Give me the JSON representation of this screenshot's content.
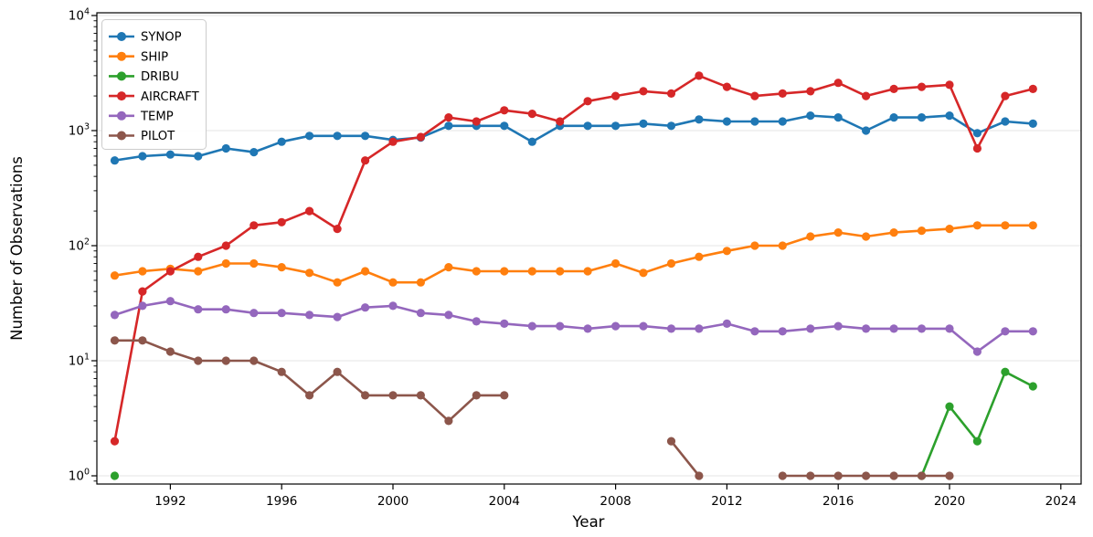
{
  "chart_data": {
    "type": "line",
    "title": "",
    "xlabel": "Year",
    "ylabel": "Number of Observations",
    "yscale": "log",
    "grid": "horizontal-major",
    "legend_position": "upper-left",
    "background_color": "#ffffff",
    "grid_color": "#e6e6e6",
    "spine_color": "#000000",
    "ylim": [
      0.85,
      10500
    ],
    "xlim": [
      1989.4,
      2024.7
    ],
    "x": [
      1990,
      1991,
      1992,
      1993,
      1994,
      1995,
      1996,
      1997,
      1998,
      1999,
      2000,
      2001,
      2002,
      2003,
      2004,
      2005,
      2006,
      2007,
      2008,
      2009,
      2010,
      2011,
      2012,
      2013,
      2014,
      2015,
      2016,
      2017,
      2018,
      2019,
      2020,
      2021,
      2022,
      2023
    ],
    "xticks": [
      1992,
      1996,
      2000,
      2004,
      2008,
      2012,
      2016,
      2020,
      2024
    ],
    "yticks": [
      1,
      10,
      100,
      1000,
      10000
    ],
    "ytick_exponents": [
      0,
      1,
      2,
      3,
      4
    ],
    "series": [
      {
        "name": "SYNOP",
        "color": "#1f77b4",
        "values": [
          550,
          600,
          620,
          600,
          700,
          650,
          800,
          900,
          900,
          900,
          830,
          870,
          1100,
          1100,
          1100,
          800,
          1100,
          1100,
          1100,
          1150,
          1100,
          1250,
          1200,
          1200,
          1200,
          1350,
          1300,
          1000,
          1300,
          1300,
          1350,
          950,
          1200,
          1150
        ]
      },
      {
        "name": "SHIP",
        "color": "#ff7f0e",
        "values": [
          55,
          60,
          63,
          60,
          70,
          70,
          65,
          58,
          48,
          60,
          48,
          48,
          65,
          60,
          60,
          60,
          60,
          60,
          70,
          58,
          70,
          80,
          90,
          100,
          100,
          120,
          130,
          120,
          130,
          135,
          140,
          150,
          150,
          150
        ]
      },
      {
        "name": "DRIBU",
        "color": "#2ca02c",
        "values": [
          1,
          null,
          null,
          null,
          null,
          null,
          null,
          null,
          null,
          null,
          null,
          null,
          null,
          null,
          null,
          null,
          null,
          null,
          null,
          null,
          null,
          null,
          null,
          null,
          null,
          null,
          null,
          null,
          null,
          1,
          4,
          2,
          8,
          6
        ]
      },
      {
        "name": "AIRCRAFT",
        "color": "#d62728",
        "values": [
          2,
          40,
          60,
          80,
          100,
          150,
          160,
          200,
          140,
          550,
          800,
          880,
          1300,
          1200,
          1500,
          1400,
          1200,
          1800,
          2000,
          2200,
          2100,
          3000,
          2400,
          2000,
          2100,
          2200,
          2600,
          2000,
          2300,
          2400,
          2500,
          700,
          2000,
          2300
        ]
      },
      {
        "name": "TEMP",
        "color": "#9467bd",
        "values": [
          25,
          30,
          33,
          28,
          28,
          26,
          26,
          25,
          24,
          29,
          30,
          26,
          25,
          22,
          21,
          20,
          20,
          19,
          20,
          20,
          19,
          19,
          21,
          18,
          18,
          19,
          20,
          19,
          19,
          19,
          19,
          12,
          18,
          18
        ]
      },
      {
        "name": "PILOT",
        "color": "#8c564b",
        "values": [
          15,
          15,
          12,
          10,
          10,
          10,
          8,
          5,
          8,
          5,
          5,
          5,
          3,
          5,
          5,
          null,
          null,
          null,
          null,
          null,
          2,
          1,
          null,
          null,
          1,
          1,
          1,
          1,
          1,
          1,
          1,
          null,
          null,
          null
        ]
      }
    ]
  }
}
